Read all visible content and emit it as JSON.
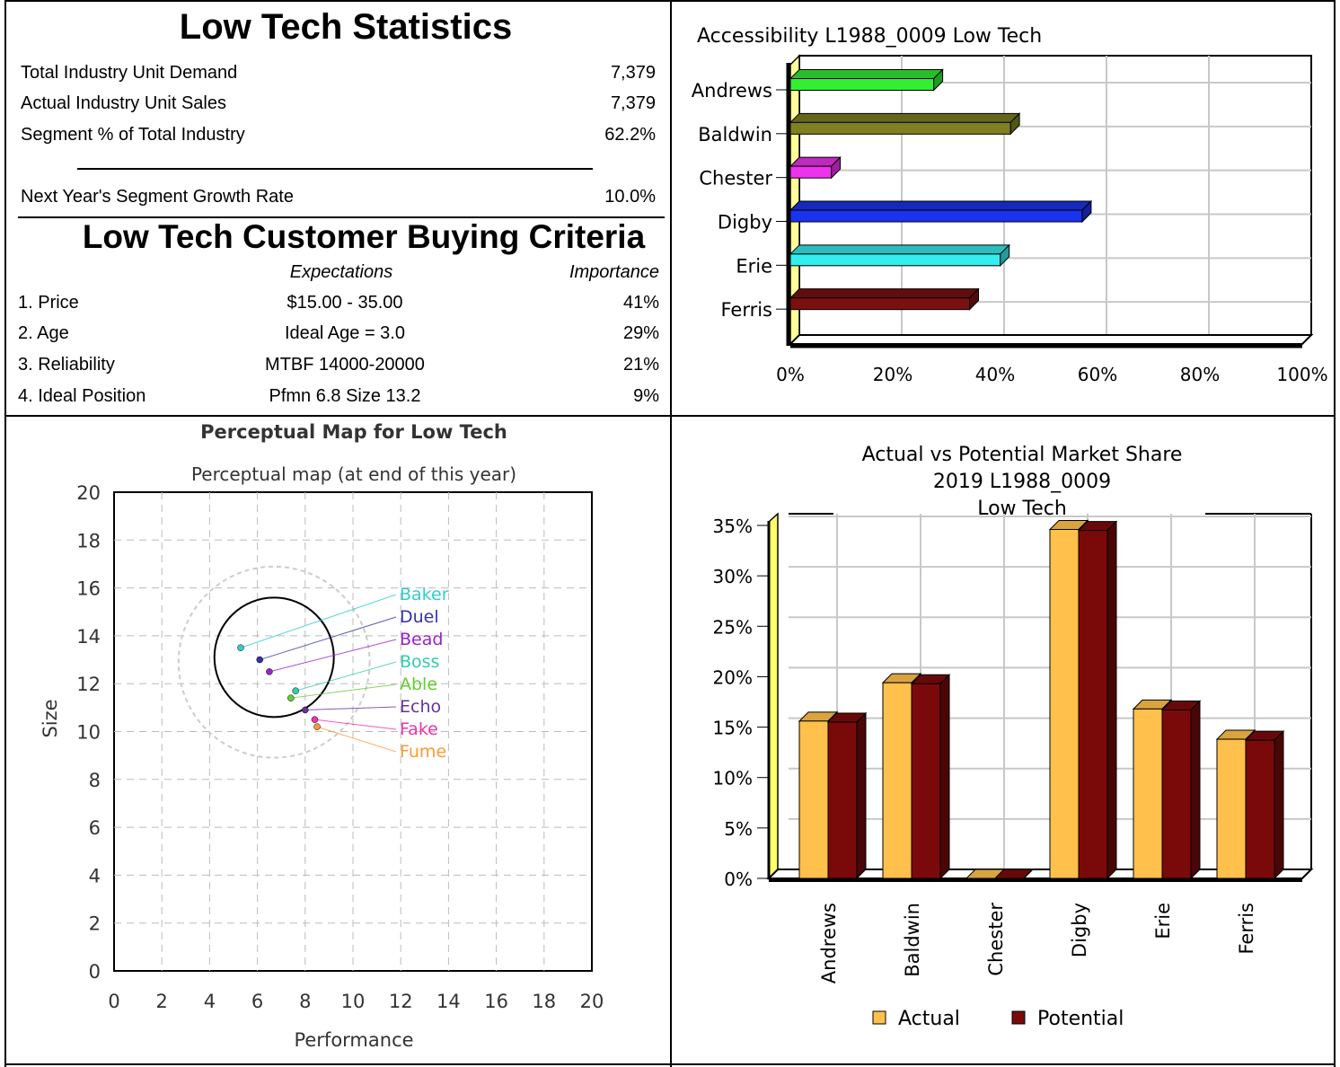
{
  "stats": {
    "title": "Low Tech Statistics",
    "rows": [
      {
        "label": "Total Industry Unit Demand",
        "value": "7,379"
      },
      {
        "label": "Actual Industry Unit Sales",
        "value": "7,379"
      },
      {
        "label": "Segment % of Total Industry",
        "value": "62.2%"
      }
    ],
    "growth": {
      "label": "Next Year's Segment Growth Rate",
      "value": "10.0%"
    }
  },
  "criteria": {
    "title": "Low Tech Customer Buying Criteria",
    "col_expectations": "Expectations",
    "col_importance": "Importance",
    "rows": [
      {
        "label": "1. Price",
        "expectation": "$15.00 - 35.00",
        "importance": "41%"
      },
      {
        "label": "2. Age",
        "expectation": "Ideal Age = 3.0",
        "importance": "29%"
      },
      {
        "label": "3. Reliability",
        "expectation": "MTBF 14000-20000",
        "importance": "21%"
      },
      {
        "label": "4. Ideal Position",
        "expectation": "Pfmn 6.8 Size 13.2",
        "importance": "9%"
      }
    ]
  },
  "chart_data": [
    {
      "type": "bar",
      "orientation": "horizontal",
      "title": "Accessibility L1988_0009 Low Tech",
      "categories": [
        "Andrews",
        "Baldwin",
        "Chester",
        "Digby",
        "Erie",
        "Ferris"
      ],
      "values": [
        28,
        43,
        8,
        57,
        41,
        35
      ],
      "colors": [
        "#33ee33",
        "#808020",
        "#ee33ee",
        "#1a33ee",
        "#33eeee",
        "#7a1010"
      ],
      "xlim": [
        0,
        100
      ],
      "xticks": [
        "0%",
        "20%",
        "40%",
        "60%",
        "80%",
        "100%"
      ],
      "grid": true
    },
    {
      "type": "scatter",
      "title": "Perceptual Map for Low Tech",
      "subtitle": "Perceptual map (at end of this year)",
      "xlabel": "Performance",
      "ylabel": "Size",
      "xlim": [
        0,
        20
      ],
      "ylim": [
        0,
        20
      ],
      "xticks": [
        "0",
        "2",
        "4",
        "6",
        "8",
        "10",
        "12",
        "14",
        "16",
        "18",
        "20"
      ],
      "yticks": [
        "0",
        "2",
        "4",
        "6",
        "8",
        "10",
        "12",
        "14",
        "16",
        "18",
        "20"
      ],
      "grid": true,
      "circles": [
        {
          "center": [
            6.7,
            13.1
          ],
          "radius": 2.5,
          "style": "solid"
        },
        {
          "center": [
            6.7,
            12.9
          ],
          "radius": 4.0,
          "style": "dashed"
        }
      ],
      "points": [
        {
          "label": "Baker",
          "x": 5.3,
          "y": 13.5,
          "color": "#33cccc"
        },
        {
          "label": "Duel",
          "x": 6.1,
          "y": 13.0,
          "color": "#3333aa"
        },
        {
          "label": "Bead",
          "x": 6.5,
          "y": 12.5,
          "color": "#9922cc"
        },
        {
          "label": "Boss",
          "x": 7.6,
          "y": 11.7,
          "color": "#33ccaa"
        },
        {
          "label": "Able",
          "x": 7.4,
          "y": 11.4,
          "color": "#66cc33"
        },
        {
          "label": "Echo",
          "x": 8.0,
          "y": 10.9,
          "color": "#663399"
        },
        {
          "label": "Fake",
          "x": 8.4,
          "y": 10.5,
          "color": "#ee33aa"
        },
        {
          "label": "Fume",
          "x": 8.5,
          "y": 10.2,
          "color": "#ff9933"
        }
      ]
    },
    {
      "type": "bar",
      "title_lines": [
        "Actual vs Potential Market Share",
        "2019 L1988_0009",
        "Low Tech"
      ],
      "categories": [
        "Andrews",
        "Baldwin",
        "Chester",
        "Digby",
        "Erie",
        "Ferris"
      ],
      "series": [
        {
          "name": "Actual",
          "values": [
            15.6,
            19.4,
            0,
            34.6,
            16.8,
            13.8
          ],
          "color": "#ffc04c"
        },
        {
          "name": "Potential",
          "values": [
            15.5,
            19.3,
            0,
            34.5,
            16.7,
            13.7
          ],
          "color": "#7a0a0a"
        }
      ],
      "ylim": [
        0,
        35
      ],
      "yticks": [
        "0%",
        "5%",
        "10%",
        "15%",
        "20%",
        "25%",
        "30%",
        "35%"
      ],
      "grid": true,
      "legend": "bottom"
    }
  ]
}
